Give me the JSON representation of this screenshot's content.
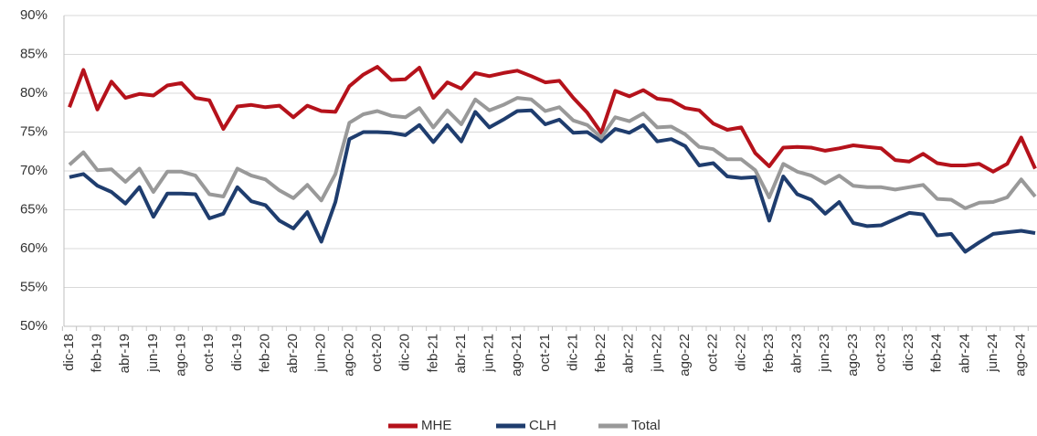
{
  "chart_data": {
    "type": "line",
    "categories": [
      "dic-18",
      null,
      "feb-19",
      null,
      "abr-19",
      null,
      "jun-19",
      null,
      "ago-19",
      null,
      "oct-19",
      null,
      "dic-19",
      null,
      "feb-20",
      null,
      "abr-20",
      null,
      "jun-20",
      null,
      "ago-20",
      null,
      "oct-20",
      null,
      "dic-20",
      null,
      "feb-21",
      null,
      "abr-21",
      null,
      "jun-21",
      null,
      "ago-21",
      null,
      "oct-21",
      null,
      "dic-21",
      null,
      "feb-22",
      null,
      "abr-22",
      null,
      "jun-22",
      null,
      "ago-22",
      null,
      "oct-22",
      null,
      "dic-22",
      null,
      "feb-23",
      null,
      "abr-23",
      null,
      "jun-23",
      null,
      "ago-23",
      null,
      "oct-23",
      null,
      "dic-23",
      null,
      "feb-24",
      null,
      "abr-24",
      null,
      "jun-24",
      null,
      "ago-24",
      null
    ],
    "series": [
      {
        "name": "MHE",
        "color": "#b5121b",
        "values": [
          78.2,
          83.0,
          77.9,
          81.5,
          79.4,
          79.9,
          79.7,
          81.0,
          81.3,
          79.4,
          79.1,
          75.4,
          78.3,
          78.5,
          78.2,
          78.4,
          76.9,
          78.4,
          77.7,
          77.6,
          80.9,
          82.4,
          83.4,
          81.7,
          81.8,
          83.3,
          79.4,
          81.4,
          80.6,
          82.6,
          82.2,
          82.6,
          82.9,
          82.2,
          81.4,
          81.6,
          79.4,
          77.5,
          74.9,
          80.3,
          79.6,
          80.4,
          79.3,
          79.1,
          78.1,
          77.8,
          76.1,
          75.3,
          75.6,
          72.3,
          70.6,
          73.0,
          73.1,
          73.0,
          72.6,
          72.9,
          73.3,
          73.1,
          72.9,
          71.4,
          71.2,
          72.2,
          71.0,
          70.7,
          70.7,
          70.9,
          69.9,
          70.9,
          74.3,
          70.3
        ]
      },
      {
        "name": "CLH",
        "color": "#1f3d6e",
        "values": [
          69.2,
          69.6,
          68.1,
          67.3,
          65.8,
          67.9,
          64.1,
          67.1,
          67.1,
          67.0,
          63.9,
          64.5,
          67.9,
          66.1,
          65.6,
          63.6,
          62.6,
          64.7,
          60.9,
          66.0,
          74.1,
          75.0,
          75.0,
          74.9,
          74.6,
          75.9,
          73.7,
          75.9,
          73.8,
          77.6,
          75.6,
          76.6,
          77.7,
          77.8,
          76.0,
          76.6,
          74.9,
          75.0,
          73.8,
          75.4,
          74.9,
          75.9,
          73.8,
          74.1,
          73.2,
          70.7,
          71.0,
          69.3,
          69.1,
          69.2,
          63.6,
          69.3,
          67.0,
          66.3,
          64.5,
          66.0,
          63.3,
          62.9,
          63.0,
          63.8,
          64.6,
          64.4,
          61.7,
          61.9,
          59.6,
          60.8,
          61.9,
          62.1,
          62.3,
          62.0
        ]
      },
      {
        "name": "Total",
        "color": "#999999",
        "values": [
          70.8,
          72.4,
          70.1,
          70.2,
          68.6,
          70.3,
          67.3,
          69.9,
          69.9,
          69.4,
          67.0,
          66.7,
          70.3,
          69.4,
          68.9,
          67.5,
          66.5,
          68.2,
          66.2,
          69.6,
          76.2,
          77.3,
          77.7,
          77.1,
          76.9,
          78.1,
          75.6,
          77.8,
          76.0,
          79.2,
          77.8,
          78.5,
          79.4,
          79.2,
          77.7,
          78.2,
          76.5,
          75.9,
          74.3,
          76.9,
          76.4,
          77.4,
          75.6,
          75.7,
          74.7,
          73.1,
          72.8,
          71.5,
          71.5,
          70.1,
          66.6,
          70.9,
          69.9,
          69.4,
          68.4,
          69.4,
          68.1,
          67.9,
          67.9,
          67.6,
          67.9,
          68.2,
          66.4,
          66.3,
          65.2,
          65.9,
          66.0,
          66.6,
          68.9,
          66.7
        ]
      }
    ],
    "ylim": [
      50,
      90
    ],
    "yticks": [
      {
        "value": 50,
        "label": "50%"
      },
      {
        "value": 55,
        "label": "55%"
      },
      {
        "value": 60,
        "label": "60%"
      },
      {
        "value": 65,
        "label": "65%"
      },
      {
        "value": 70,
        "label": "70%"
      },
      {
        "value": 75,
        "label": "75%"
      },
      {
        "value": 80,
        "label": "80%"
      },
      {
        "value": 85,
        "label": "85%"
      },
      {
        "value": 90,
        "label": "90%"
      }
    ],
    "grid": true,
    "legend": "bottom"
  }
}
